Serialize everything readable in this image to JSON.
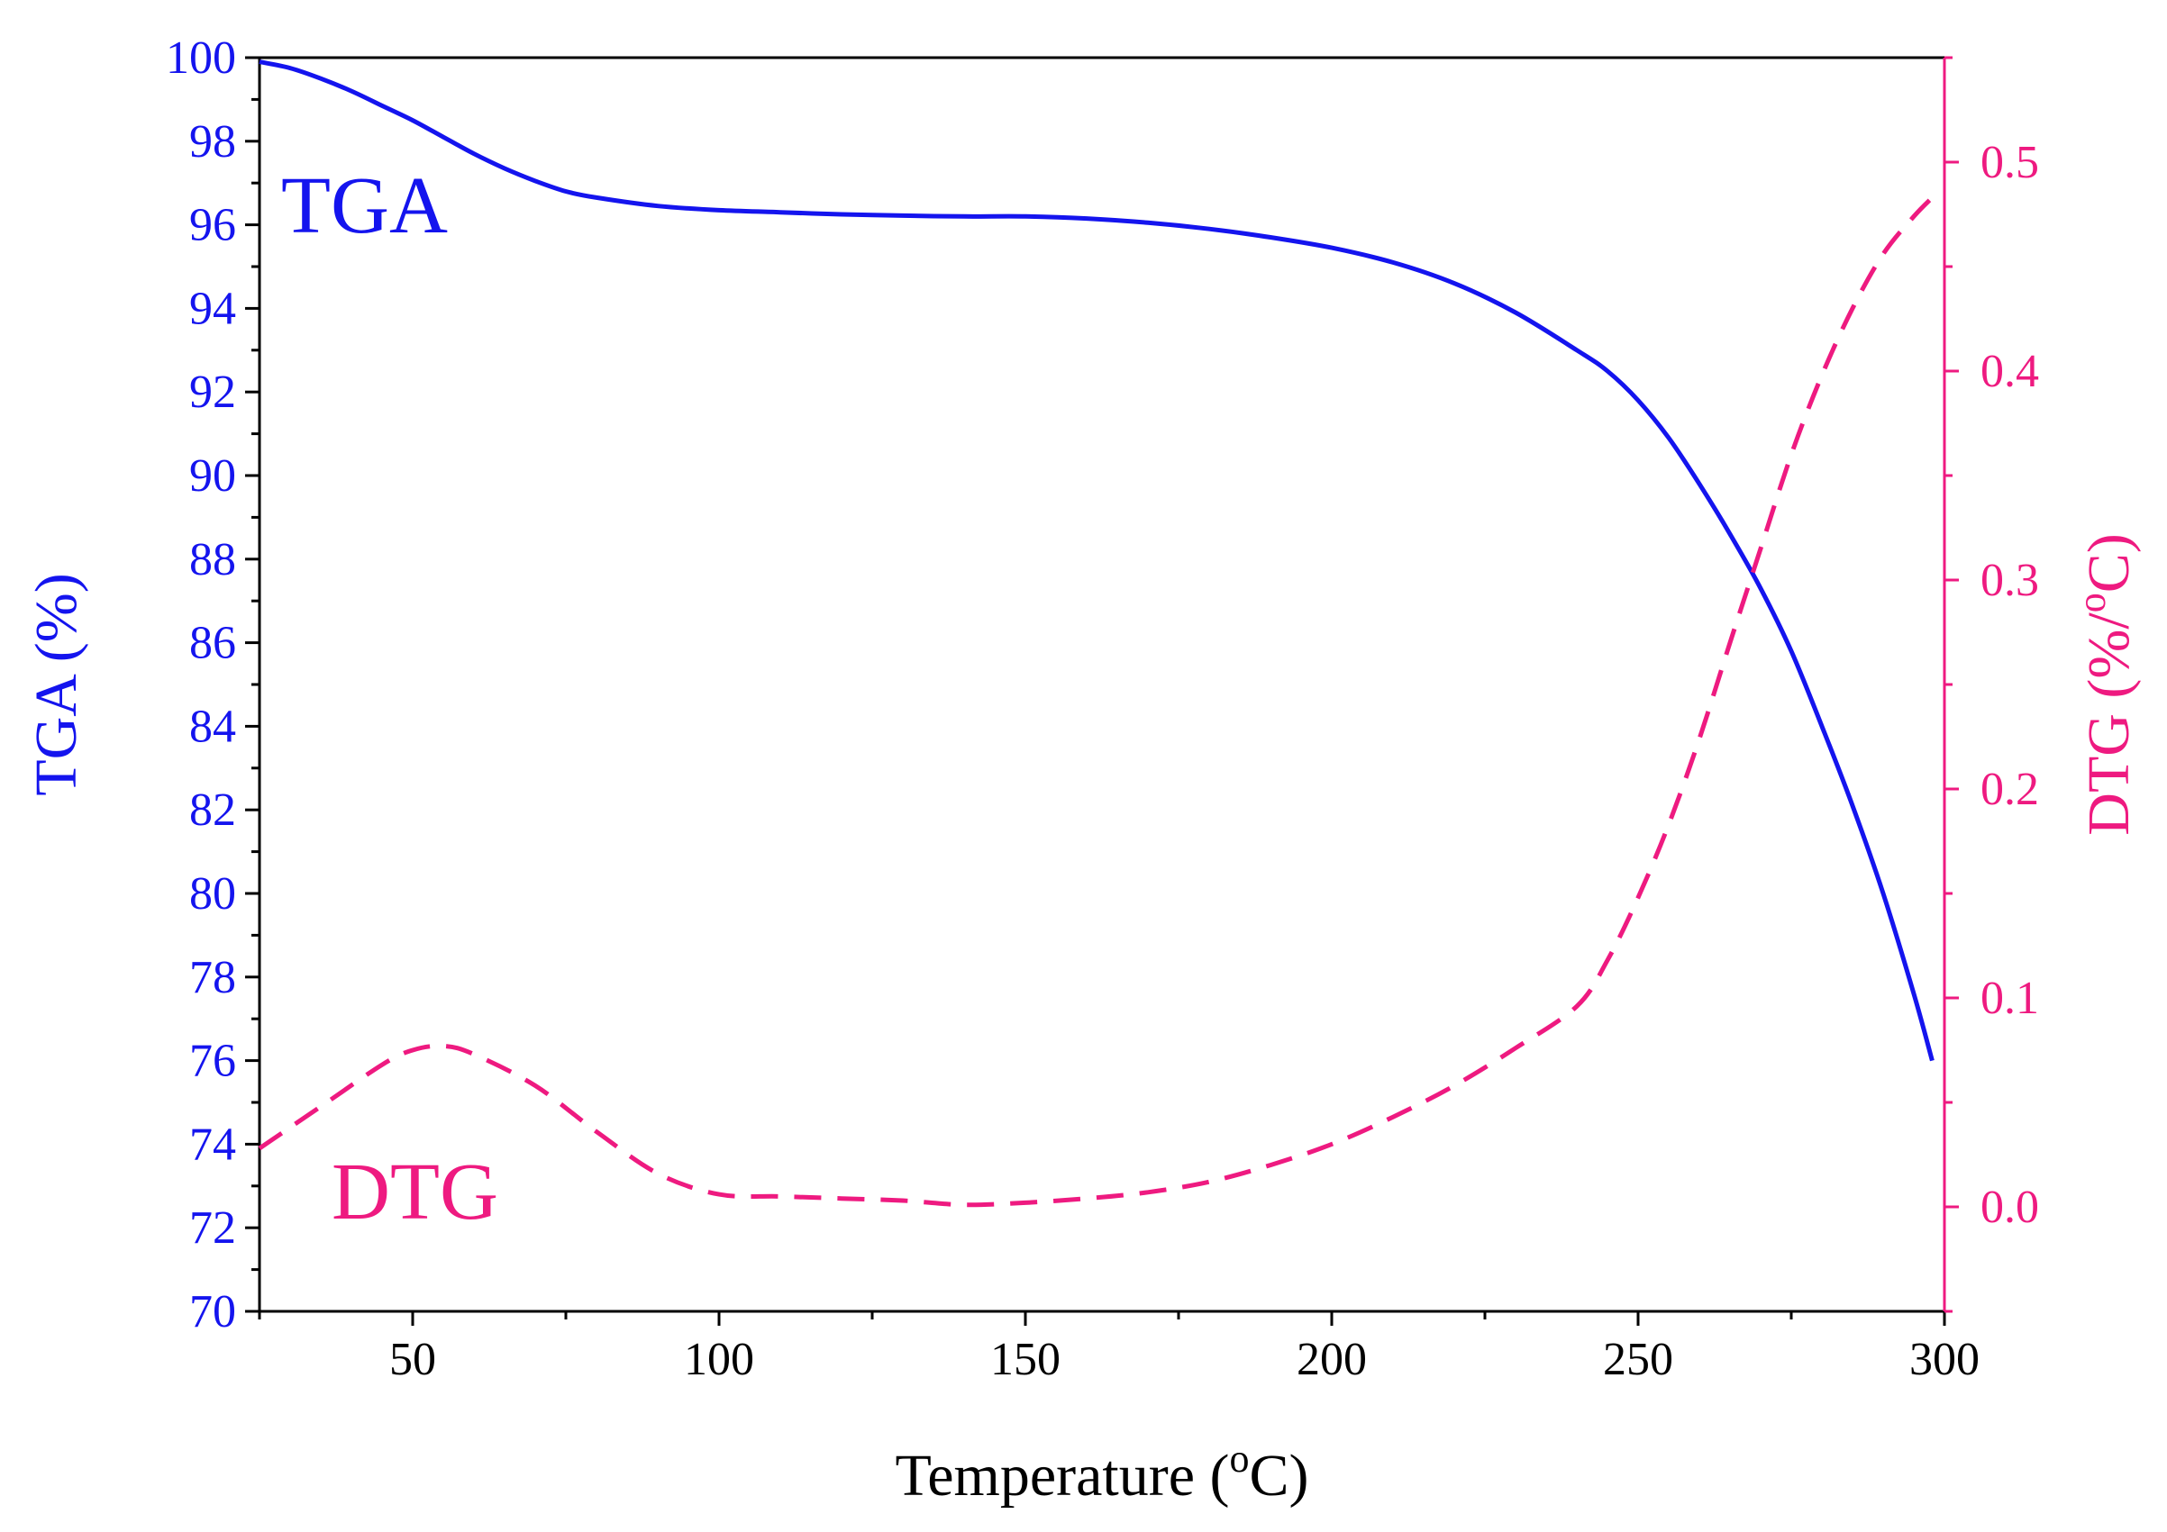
{
  "chart_data": {
    "type": "line",
    "title": "",
    "xlabel": "Temperature (",
    "xlabel_sup": "o",
    "xlabel_tail": "C)",
    "xlim": [
      25,
      300
    ],
    "x_ticks": [
      "50",
      "100",
      "150",
      "200",
      "250",
      "300"
    ],
    "x_tick_values": [
      50,
      100,
      150,
      200,
      250,
      300
    ],
    "x_minor_step": 25,
    "grid": false,
    "colors": {
      "tga": "#1414ee",
      "dtg": "#ee1a80",
      "axis": "#000000"
    },
    "y_left": {
      "label": "TGA (%)",
      "ylim": [
        70,
        100
      ],
      "ticks": [
        "70",
        "72",
        "74",
        "76",
        "78",
        "80",
        "82",
        "84",
        "86",
        "88",
        "90",
        "92",
        "94",
        "96",
        "98",
        "100"
      ],
      "tick_values": [
        70,
        72,
        74,
        76,
        78,
        80,
        82,
        84,
        86,
        88,
        90,
        92,
        94,
        96,
        98,
        100
      ],
      "minor_step": 1
    },
    "y_right": {
      "label": "DTG (%/",
      "label_sup": "o",
      "label_tail": "C)",
      "ylim": [
        -0.05,
        0.55
      ],
      "ticks": [
        "0.0",
        "0.1",
        "0.2",
        "0.3",
        "0.4",
        "0.5"
      ],
      "tick_values": [
        0.0,
        0.1,
        0.2,
        0.3,
        0.4,
        0.5
      ],
      "minor_step": 0.05
    },
    "series": [
      {
        "name": "TGA",
        "axis": "left",
        "style": "solid",
        "x": [
          25,
          30,
          35,
          40,
          45,
          50,
          55,
          60,
          65,
          70,
          75,
          80,
          90,
          100,
          110,
          120,
          130,
          140,
          150,
          160,
          170,
          180,
          190,
          200,
          210,
          220,
          230,
          240,
          245,
          250,
          255,
          260,
          265,
          270,
          275,
          280,
          285,
          290,
          295,
          298
        ],
        "values": [
          99.9,
          99.75,
          99.5,
          99.2,
          98.85,
          98.5,
          98.1,
          97.7,
          97.35,
          97.05,
          96.8,
          96.65,
          96.45,
          96.35,
          96.3,
          96.25,
          96.22,
          96.2,
          96.2,
          96.15,
          96.05,
          95.9,
          95.7,
          95.45,
          95.1,
          94.6,
          93.9,
          93.0,
          92.5,
          91.8,
          90.9,
          89.8,
          88.6,
          87.3,
          85.8,
          84.0,
          82.1,
          80.0,
          77.6,
          76.0
        ]
      },
      {
        "name": "DTG",
        "axis": "right",
        "style": "dashed",
        "x": [
          25,
          35,
          45,
          50,
          55,
          60,
          70,
          80,
          90,
          100,
          110,
          120,
          130,
          140,
          150,
          160,
          170,
          180,
          190,
          200,
          210,
          220,
          230,
          240,
          245,
          250,
          255,
          260,
          265,
          270,
          275,
          280,
          285,
          290,
          295,
          298
        ],
        "values": [
          0.028,
          0.048,
          0.068,
          0.075,
          0.077,
          0.073,
          0.058,
          0.036,
          0.016,
          0.006,
          0.005,
          0.004,
          0.003,
          0.001,
          0.002,
          0.004,
          0.007,
          0.012,
          0.02,
          0.03,
          0.043,
          0.058,
          0.076,
          0.096,
          0.118,
          0.148,
          0.183,
          0.224,
          0.27,
          0.315,
          0.36,
          0.398,
          0.43,
          0.456,
          0.474,
          0.483
        ]
      }
    ],
    "annotations": [
      {
        "text": "TGA",
        "series": "TGA"
      },
      {
        "text": "DTG",
        "series": "DTG"
      }
    ]
  }
}
